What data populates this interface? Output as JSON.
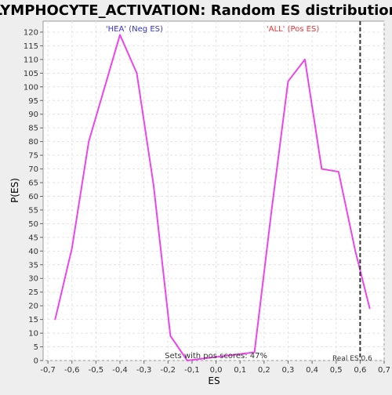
{
  "chart_data": {
    "type": "line",
    "title": "LYMPHOCYTE_ACTIVATION: Random ES distribution",
    "xlabel": "ES",
    "ylabel": "P(ES)",
    "xlim": [
      -0.72,
      0.7
    ],
    "ylim": [
      0,
      124
    ],
    "x_ticks": [
      -0.7,
      -0.6,
      -0.5,
      -0.4,
      -0.3,
      -0.2,
      -0.1,
      0.0,
      0.1,
      0.2,
      0.3,
      0.4,
      0.5,
      0.6,
      0.7
    ],
    "x_tick_labels": [
      "-0,7",
      "-0,6",
      "-0,5",
      "-0,4",
      "-0,3",
      "-0,2",
      "-0,1",
      "0,0",
      "0,1",
      "0,2",
      "0,3",
      "0,4",
      "0,5",
      "0,6",
      "0,7"
    ],
    "y_ticks": [
      0,
      5,
      10,
      15,
      20,
      25,
      30,
      35,
      40,
      45,
      50,
      55,
      60,
      65,
      70,
      75,
      80,
      85,
      90,
      95,
      100,
      105,
      110,
      115,
      120
    ],
    "grid": true,
    "series": [
      {
        "color": "#ee44ee",
        "x": [
          -0.67,
          -0.6,
          -0.53,
          -0.46,
          -0.4,
          -0.33,
          -0.26,
          -0.19,
          -0.12,
          0.16,
          0.23,
          0.3,
          0.37,
          0.44,
          0.51,
          0.58,
          0.64
        ],
        "y": [
          15,
          41,
          80,
          101,
          119,
          105,
          64,
          9,
          0,
          3,
          54,
          102,
          110,
          70,
          69,
          40,
          19
        ]
      }
    ],
    "flat_segment": {
      "x": [
        -0.12,
        0.16
      ],
      "y": 0
    },
    "annotations": {
      "neg_label": "'HEA' (Neg ES)",
      "neg_color": "#3333cc",
      "pos_label": "'ALL' (Pos ES)",
      "pos_color": "#ee3333",
      "sets_label": "Sets with pos scores: 47%",
      "real_es_label": "Real ES 0.6",
      "real_es_value": 0.6
    }
  }
}
